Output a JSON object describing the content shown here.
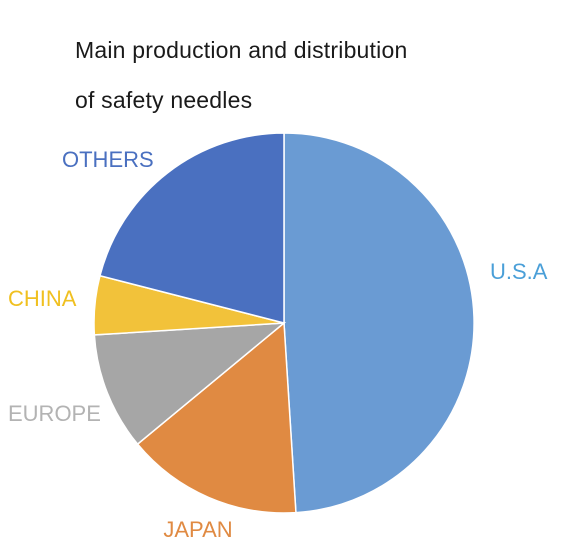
{
  "chart_data": {
    "type": "pie",
    "title_lines": [
      "Main production and distribution",
      "of safety needles"
    ],
    "start_angle_deg": 0,
    "direction": "clockwise",
    "slices": [
      {
        "label": "U.S.A",
        "value": 49,
        "color": "#6a9bd3",
        "label_color": "#4a9fd8"
      },
      {
        "label": "JAPAN",
        "value": 15,
        "color": "#e08a42",
        "label_color": "#e08a42"
      },
      {
        "label": "EUROPE",
        "value": 10,
        "color": "#a6a6a6",
        "label_color": "#b3b3b3"
      },
      {
        "label": "CHINA",
        "value": 5,
        "color": "#f2c23a",
        "label_color": "#f0c020"
      },
      {
        "label": "OTHERS",
        "value": 21,
        "color": "#4a70c0",
        "label_color": "#4a70c0"
      }
    ]
  }
}
